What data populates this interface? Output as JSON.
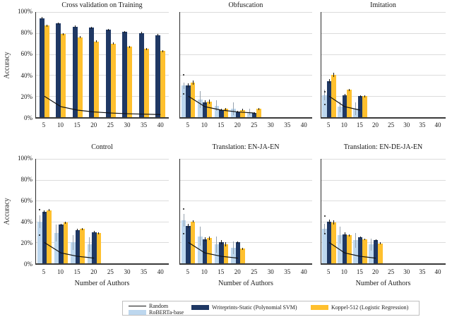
{
  "figure": {
    "ylabel": "Accuracy",
    "xlabel": "Number of Authors",
    "y_ticks": [
      "100%",
      "80%",
      "60%",
      "40%",
      "20%",
      "0%"
    ],
    "x_ticks": [
      5,
      10,
      15,
      20,
      25,
      30,
      35,
      40
    ],
    "colors": {
      "roberta": "#BDD7EE",
      "writeprints": "#1F3864",
      "koppel": "#FFC02E",
      "grid": "#DCDCDC",
      "random_line": "#111111",
      "roberta_err": "#97A2AE",
      "dark_err": "#1A1A1A"
    }
  },
  "legend": {
    "items": [
      {
        "label": "Random",
        "type": "line",
        "color": "#111111"
      },
      {
        "label": "RoBERTa-base",
        "type": "patch",
        "color": "#BDD7EE"
      },
      {
        "label": "Writeprints-Static (Polynomial SVM)",
        "type": "patch",
        "color": "#1F3864"
      },
      {
        "label": "Koppel-512 (Logistic Regression)",
        "type": "patch",
        "color": "#FFC02E"
      }
    ]
  },
  "chart_data": [
    {
      "type": "bar",
      "title": "Cross validation on Training",
      "x": [
        5,
        10,
        15,
        20,
        25,
        30,
        35,
        40
      ],
      "series": [
        {
          "name": "Writeprints-Static (Polynomial SVM)",
          "key": "writeprints",
          "color": "#1F3864",
          "values": [
            94,
            89,
            86,
            85,
            83,
            81,
            80,
            78
          ],
          "err": [
            1,
            1,
            1,
            1,
            1,
            1,
            1,
            1
          ]
        },
        {
          "name": "Koppel-512 (Logistic Regression)",
          "key": "koppel",
          "color": "#FFC02E",
          "values": [
            87,
            79,
            76,
            72,
            70,
            67,
            65,
            63
          ],
          "err": [
            1,
            1,
            1,
            1,
            1,
            1,
            1,
            1
          ]
        }
      ],
      "random": {
        "x": [
          5,
          10,
          15,
          20,
          25,
          30,
          35,
          40
        ],
        "y": [
          20,
          10,
          6.7,
          5,
          4,
          3.3,
          2.9,
          2.5
        ]
      },
      "dots": []
    },
    {
      "type": "bar",
      "title": "Obfuscation",
      "x": [
        5,
        10,
        15,
        20,
        25
      ],
      "series": [
        {
          "name": "RoBERTa-base",
          "key": "roberta",
          "color": "#BDD7EE",
          "values": [
            30,
            17,
            11,
            8,
            5
          ],
          "err": [
            3,
            8,
            5,
            6,
            3
          ]
        },
        {
          "name": "Writeprints-Static (Polynomial SVM)",
          "key": "writeprints",
          "color": "#1F3864",
          "values": [
            30,
            14,
            7,
            5,
            4
          ],
          "err": [
            2,
            2,
            1,
            1,
            1
          ]
        },
        {
          "name": "Koppel-512 (Logistic Regression)",
          "key": "koppel",
          "color": "#FFC02E",
          "values": [
            33,
            15,
            8,
            7,
            8
          ],
          "err": [
            2,
            2,
            1,
            1,
            1
          ]
        }
      ],
      "random": {
        "x": [
          5,
          10,
          15,
          20,
          25
        ],
        "y": [
          20,
          10,
          6.7,
          5,
          4
        ]
      },
      "dots": [
        {
          "x": 5,
          "y": 41
        },
        {
          "x": 5,
          "y": 23
        }
      ]
    },
    {
      "type": "bar",
      "title": "Imitation",
      "x": [
        5,
        10,
        15
      ],
      "series": [
        {
          "name": "RoBERTa-base",
          "key": "roberta",
          "color": "#BDD7EE",
          "values": [
            21,
            10,
            8
          ],
          "err": [
            5,
            5,
            6
          ]
        },
        {
          "name": "Writeprints-Static (Polynomial SVM)",
          "key": "writeprints",
          "color": "#1F3864",
          "values": [
            34,
            21,
            20
          ],
          "err": [
            2,
            1,
            1
          ]
        },
        {
          "name": "Koppel-512 (Logistic Regression)",
          "key": "koppel",
          "color": "#FFC02E",
          "values": [
            40,
            26,
            20
          ],
          "err": [
            2,
            1,
            1
          ]
        }
      ],
      "random": {
        "x": [
          5,
          10,
          15
        ],
        "y": [
          20,
          10,
          6.7
        ]
      },
      "dots": [
        {
          "x": 5,
          "y": 25
        },
        {
          "x": 5,
          "y": 13
        }
      ]
    },
    {
      "type": "bar",
      "title": "Control",
      "x": [
        5,
        10,
        15,
        20
      ],
      "series": [
        {
          "name": "RoBERTa-base",
          "key": "roberta",
          "color": "#BDD7EE",
          "values": [
            40,
            29,
            20,
            18
          ],
          "err": [
            6,
            8,
            7,
            7
          ]
        },
        {
          "name": "Writeprints-Static (Polynomial SVM)",
          "key": "writeprints",
          "color": "#1F3864",
          "values": [
            49,
            37,
            32,
            30
          ],
          "err": [
            2,
            1,
            1,
            1
          ]
        },
        {
          "name": "Koppel-512 (Logistic Regression)",
          "key": "koppel",
          "color": "#FFC02E",
          "values": [
            51,
            39,
            33,
            29
          ],
          "err": [
            1,
            1,
            1,
            1
          ]
        }
      ],
      "random": {
        "x": [
          5,
          10,
          15,
          20
        ],
        "y": [
          20,
          10,
          6.7,
          5
        ]
      },
      "dots": [
        {
          "x": 5,
          "y": 52
        },
        {
          "x": 5,
          "y": 28
        }
      ]
    },
    {
      "type": "bar",
      "title": "Translation: EN-JA-EN",
      "x": [
        5,
        10,
        15,
        20
      ],
      "series": [
        {
          "name": "RoBERTa-base",
          "key": "roberta",
          "color": "#BDD7EE",
          "values": [
            41,
            26,
            18,
            15
          ],
          "err": [
            6,
            9,
            8,
            6
          ]
        },
        {
          "name": "Writeprints-Static (Polynomial SVM)",
          "key": "writeprints",
          "color": "#1F3864",
          "values": [
            36,
            23,
            20,
            20
          ],
          "err": [
            2,
            2,
            2,
            1
          ]
        },
        {
          "name": "Koppel-512 (Logistic Regression)",
          "key": "koppel",
          "color": "#FFC02E",
          "values": [
            40,
            24,
            18,
            14
          ],
          "err": [
            1,
            2,
            2,
            1
          ]
        }
      ],
      "random": {
        "x": [
          5,
          10,
          15,
          20
        ],
        "y": [
          20,
          10,
          6.7,
          5
        ]
      },
      "dots": [
        {
          "x": 5,
          "y": 53
        },
        {
          "x": 5,
          "y": 29
        }
      ]
    },
    {
      "type": "bar",
      "title": "Translation: EN-DE-JA-EN",
      "x": [
        5,
        10,
        15,
        20
      ],
      "series": [
        {
          "name": "RoBERTa-base",
          "key": "roberta",
          "color": "#BDD7EE",
          "values": [
            33,
            27,
            22,
            18
          ],
          "err": [
            5,
            8,
            7,
            6
          ]
        },
        {
          "name": "Writeprints-Static (Polynomial SVM)",
          "key": "writeprints",
          "color": "#1F3864",
          "values": [
            40,
            28,
            25,
            22
          ],
          "err": [
            2,
            2,
            1,
            1
          ]
        },
        {
          "name": "Koppel-512 (Logistic Regression)",
          "key": "koppel",
          "color": "#FFC02E",
          "values": [
            39,
            27,
            23,
            19
          ],
          "err": [
            2,
            1,
            1,
            1
          ]
        }
      ],
      "random": {
        "x": [
          5,
          10,
          15,
          20
        ],
        "y": [
          20,
          10,
          6.7,
          5
        ]
      },
      "dots": [
        {
          "x": 5,
          "y": 46
        },
        {
          "x": 5,
          "y": 29
        }
      ]
    }
  ]
}
